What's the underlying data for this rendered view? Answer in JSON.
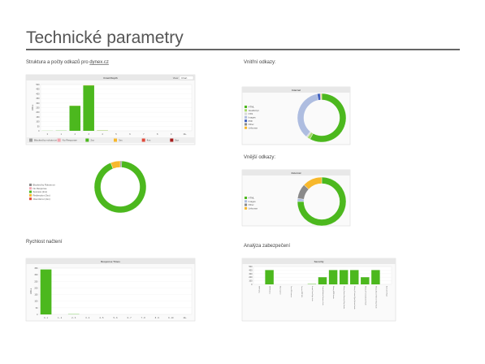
{
  "header": {
    "title": "Technické parametry"
  },
  "sections": [
    {
      "heading": "Struktura a počty odkazů pro",
      "link": "dynex.cz"
    },
    {
      "heading": "Vnitřní odkazy:"
    },
    {
      "heading": "Vnější odkazy:"
    },
    {
      "heading": "Rychlost načtení"
    },
    {
      "heading": "Analýza zabezpečení"
    }
  ],
  "charts": [
    {
      "type": "bar",
      "title": "Crawl Depth",
      "view_label": "View:",
      "view_value": "Chart",
      "y_label": "URLs",
      "legend": "bottom",
      "categories": [
        "0",
        "1",
        "2",
        "3",
        "4",
        "5",
        "6",
        "7",
        "8",
        "9",
        "10+"
      ],
      "ylim": [
        0,
        500
      ],
      "yticks": [
        0,
        50,
        100,
        150,
        200,
        250,
        300,
        350,
        400,
        450,
        500
      ],
      "series": [
        {
          "name": "Blocked by robots.txt",
          "color": "#9e9e9e",
          "values": [
            0,
            0,
            0,
            0,
            0,
            0,
            0,
            0,
            0,
            0,
            0
          ]
        },
        {
          "name": "No Response",
          "color": "#f4a6b0",
          "values": [
            0,
            0,
            0,
            0,
            0,
            0,
            0,
            0,
            0,
            0,
            0
          ]
        },
        {
          "name": "2xx",
          "color": "#4cb81e",
          "values": [
            1,
            2,
            270,
            490,
            3,
            0,
            0,
            0,
            0,
            0,
            0
          ]
        },
        {
          "name": "3xx",
          "color": "#f7b82c",
          "values": [
            0,
            0,
            1,
            2,
            1,
            0,
            0,
            0,
            0,
            0,
            0
          ]
        },
        {
          "name": "4xx",
          "color": "#e0493a",
          "values": [
            0,
            0,
            0,
            0,
            0,
            0,
            0,
            0,
            0,
            0,
            0
          ]
        },
        {
          "name": "5xx",
          "color": "#a51c1c",
          "values": [
            0,
            0,
            0,
            0,
            0,
            0,
            0,
            0,
            0,
            0,
            0
          ]
        }
      ]
    },
    {
      "type": "donut",
      "categories": [
        "Blocked by Robots.txt",
        "No Response",
        "Success (2xx)",
        "Redirection (3xx)",
        "Client Error (4xx)"
      ],
      "colors": [
        "#8a8a8a",
        "#f4a6b0",
        "#4cb81e",
        "#f7b82c",
        "#e0493a"
      ],
      "values": [
        1,
        0,
        93,
        6,
        0
      ]
    },
    {
      "type": "donut",
      "title": "Internal",
      "categories": [
        "HTML",
        "JavaScript",
        "CSS",
        "Images",
        "PDF",
        "Other",
        "Unknown"
      ],
      "colors": [
        "#4cb81e",
        "#a6d96a",
        "#d9d9d9",
        "#aebde0",
        "#3f5fbf",
        "#8a8a8a",
        "#f7b82c"
      ],
      "values": [
        58,
        2,
        1,
        36,
        2,
        0.5,
        0.5
      ]
    },
    {
      "type": "donut",
      "title": "External",
      "categories": [
        "HTML",
        "Images",
        "Other",
        "Unknown"
      ],
      "colors": [
        "#4cb81e",
        "#aebde0",
        "#8a8a8a",
        "#f7b82c"
      ],
      "values": [
        75,
        2,
        10,
        13
      ]
    },
    {
      "type": "bar",
      "title": "Response Times",
      "y_label": "URLs",
      "categories": [
        "0 - 1",
        "1 - 2",
        "2 - 3",
        "3 - 4",
        "4 - 5",
        "5 - 6",
        "6 - 7",
        "7 - 8",
        "8 - 9",
        "9 - 10",
        "10+"
      ],
      "ylim": [
        0,
        350
      ],
      "yticks": [
        0,
        50,
        100,
        150,
        200,
        250,
        300,
        350
      ],
      "series": [
        {
          "name": "URLs",
          "color": "#4cb81e",
          "values": [
            340,
            0,
            2,
            0,
            0,
            0,
            0,
            0,
            0,
            0,
            0
          ]
        }
      ]
    },
    {
      "type": "bar",
      "title": "Security",
      "labels_rotated": true,
      "categories": [
        "HTTP URLs",
        "HTTPS URLs",
        "Mixed Content",
        "Form URL Insecure",
        "Form on HTTP URL",
        "Unsafe Cross-Origin Links",
        "Protocol-Relative Resource Links",
        "Missing HSTS Header",
        "Missing Content-Security-Policy Header",
        "Missing X-Content-Type-Options Header",
        "Missing X-Frame-Options Header",
        "Missing Secure Referrer-Policy Header",
        "Bad Content Type"
      ],
      "ylim": [
        0,
        500
      ],
      "yticks": [
        0,
        100,
        200,
        300,
        400,
        500
      ],
      "series": [
        {
          "name": "URLs",
          "color": "#4cb81e",
          "values": [
            0,
            400,
            0,
            0,
            0,
            10,
            200,
            400,
            400,
            400,
            200,
            400,
            0
          ]
        }
      ]
    }
  ]
}
